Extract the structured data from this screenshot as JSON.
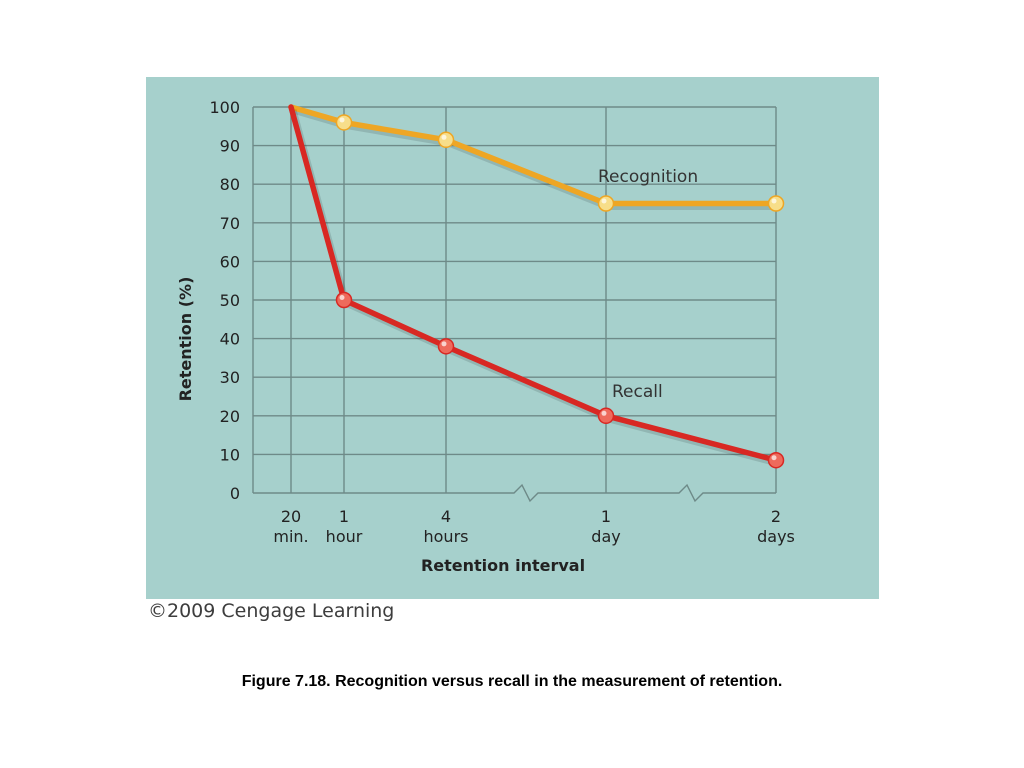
{
  "chart_data": {
    "type": "line",
    "xlabel": "Retention interval",
    "ylabel": "Retention (%)",
    "ylim": [
      0,
      100
    ],
    "y_ticks": [
      0,
      10,
      20,
      30,
      40,
      50,
      60,
      70,
      80,
      90,
      100
    ],
    "grid": true,
    "axis_breaks_after": [
      "4 hours",
      "1 day"
    ],
    "categories": [
      {
        "line1": "20",
        "line2": "min."
      },
      {
        "line1": "1",
        "line2": "hour"
      },
      {
        "line1": "4",
        "line2": "hours"
      },
      {
        "line1": "1",
        "line2": "day"
      },
      {
        "line1": "2",
        "line2": "days"
      }
    ],
    "series": [
      {
        "name": "Recognition",
        "color": "#eea624",
        "marker_color": "#f7de8a",
        "values": [
          100,
          96,
          91.5,
          75,
          75
        ]
      },
      {
        "name": "Recall",
        "color": "#d82823",
        "marker_color": "#ee6a5c",
        "values": [
          100,
          50,
          38,
          20,
          8.5
        ]
      }
    ]
  },
  "credit": "©2009 Cengage Learning",
  "caption": "Figure 7.18. Recognition versus recall in the measurement of retention."
}
